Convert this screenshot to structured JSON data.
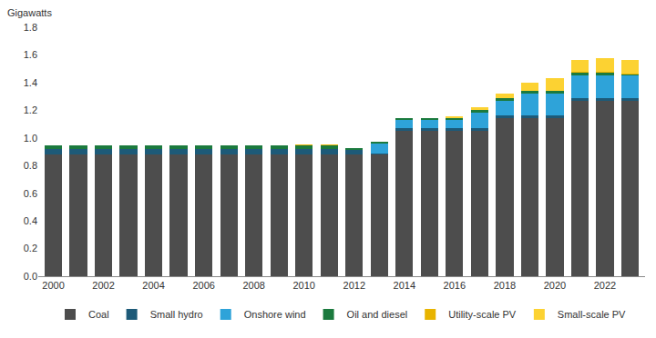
{
  "chart_data": {
    "type": "bar",
    "stacked": true,
    "grid": false,
    "legend": "bottom",
    "ylabel": "Gigawatts",
    "x": [
      2000,
      2001,
      2002,
      2003,
      2004,
      2005,
      2006,
      2007,
      2008,
      2009,
      2010,
      2011,
      2012,
      2013,
      2014,
      2015,
      2016,
      2017,
      2018,
      2019,
      2020,
      2021,
      2022,
      2023
    ],
    "xlim": [
      1999.4,
      2023.6
    ],
    "xticks": [
      2000,
      2002,
      2004,
      2006,
      2008,
      2010,
      2012,
      2014,
      2016,
      2018,
      2020,
      2022
    ],
    "ylim": [
      0,
      1.8
    ],
    "yticks": [
      {
        "value": 0,
        "label": "0.0"
      },
      0.2,
      0.4,
      0.6,
      0.8,
      {
        "value": 1,
        "label": "1.0"
      },
      1.2,
      1.4,
      1.6,
      1.8
    ],
    "series": [
      {
        "name": "Coal",
        "color": "#4d4d4d",
        "values": [
          0.88,
          0.88,
          0.88,
          0.88,
          0.88,
          0.88,
          0.88,
          0.88,
          0.88,
          0.88,
          0.88,
          0.88,
          0.88,
          0.88,
          1.05,
          1.05,
          1.05,
          1.05,
          1.14,
          1.14,
          1.14,
          1.27,
          1.27,
          1.27
        ]
      },
      {
        "name": "Small hydro",
        "color": "#1d5a78",
        "values": [
          0.04,
          0.04,
          0.04,
          0.04,
          0.04,
          0.04,
          0.04,
          0.04,
          0.04,
          0.04,
          0.04,
          0.04,
          0.03,
          0.01,
          0.02,
          0.02,
          0.02,
          0.02,
          0.02,
          0.02,
          0.02,
          0.02,
          0.02,
          0.02
        ]
      },
      {
        "name": "Onshore wind",
        "color": "#2ea3d9",
        "values": [
          0,
          0,
          0,
          0,
          0,
          0,
          0,
          0,
          0,
          0,
          0,
          0,
          0,
          0.07,
          0.06,
          0.06,
          0.06,
          0.11,
          0.11,
          0.16,
          0.16,
          0.16,
          0.16,
          0.16
        ]
      },
      {
        "name": "Oil and diesel",
        "color": "#1b7a3e",
        "values": [
          0.025,
          0.025,
          0.025,
          0.025,
          0.025,
          0.025,
          0.025,
          0.025,
          0.025,
          0.025,
          0.025,
          0.025,
          0.015,
          0.015,
          0.015,
          0.015,
          0.015,
          0.02,
          0.02,
          0.02,
          0.02,
          0.02,
          0.02,
          0.01
        ]
      },
      {
        "name": "Utility-scale PV",
        "color": "#e8b400",
        "values": [
          0,
          0,
          0,
          0,
          0,
          0,
          0,
          0,
          0,
          0,
          0.005,
          0.005,
          0,
          0,
          0,
          0,
          0,
          0,
          0,
          0,
          0,
          0.005,
          0.005,
          0.005
        ]
      },
      {
        "name": "Small-scale PV",
        "color": "#fcd232",
        "values": [
          0,
          0,
          0,
          0,
          0,
          0,
          0,
          0,
          0,
          0,
          0,
          0,
          0,
          0,
          0,
          0,
          0.01,
          0.02,
          0.03,
          0.06,
          0.09,
          0.09,
          0.1,
          0.1
        ]
      }
    ]
  }
}
